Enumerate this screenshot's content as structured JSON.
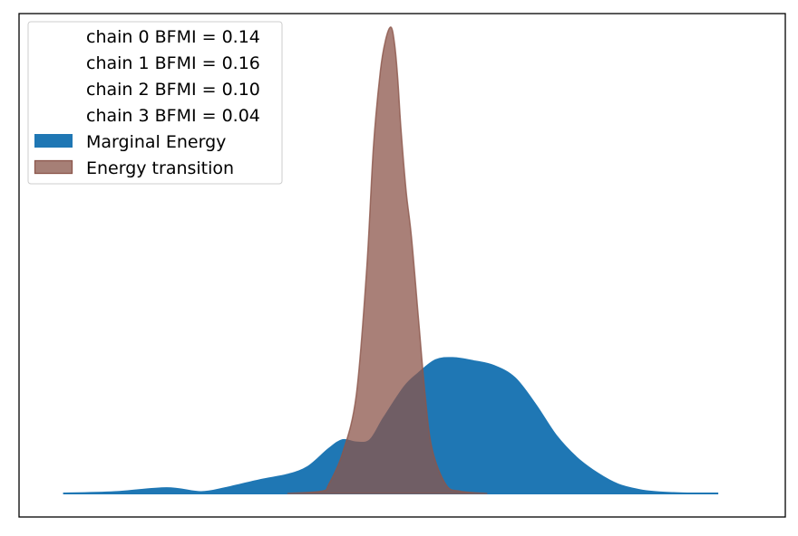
{
  "chart_data": {
    "type": "area",
    "title": "",
    "xlabel": "",
    "ylabel": "",
    "grid": false,
    "axis_ticks": false,
    "xlim": [
      -1.0,
      1.0
    ],
    "ylim": [
      0,
      1.06
    ],
    "legend_position": "upper left",
    "legend": [
      {
        "label": "chain  0 BFMI = 0.14",
        "kind": "text"
      },
      {
        "label": "chain  1 BFMI = 0.16",
        "kind": "text"
      },
      {
        "label": "chain  2 BFMI = 0.10",
        "kind": "text"
      },
      {
        "label": "chain  3 BFMI = 0.04",
        "kind": "text"
      },
      {
        "label": "Marginal Energy",
        "kind": "patch",
        "color": "#1f77b4"
      },
      {
        "label": "Energy transition",
        "kind": "patch",
        "color": "#a67f76",
        "edge": "#8c564b"
      }
    ],
    "series": [
      {
        "name": "Marginal Energy",
        "color": "#1f77b4",
        "opacity": 1.0,
        "x": [
          -0.95,
          -0.8,
          -0.65,
          -0.55,
          -0.48,
          -0.38,
          -0.3,
          -0.24,
          -0.18,
          -0.14,
          -0.1,
          -0.06,
          -0.02,
          0.04,
          0.08,
          0.13,
          0.18,
          0.24,
          0.3,
          0.36,
          0.42,
          0.48,
          0.54,
          0.6,
          0.66,
          0.72,
          0.77,
          0.82,
          0.86,
          0.9,
          0.95
        ],
        "y": [
          0.0,
          0.003,
          0.012,
          0.003,
          0.012,
          0.03,
          0.042,
          0.06,
          0.1,
          0.12,
          0.115,
          0.12,
          0.17,
          0.24,
          0.27,
          0.3,
          0.305,
          0.298,
          0.287,
          0.26,
          0.2,
          0.13,
          0.08,
          0.045,
          0.02,
          0.008,
          0.003,
          0.001,
          0.0,
          0.0,
          0.0
        ]
      },
      {
        "name": "Energy transition",
        "color": "#8c564b",
        "opacity": 0.75,
        "x": [
          -0.3,
          -0.2,
          -0.18,
          -0.14,
          -0.1,
          -0.07,
          -0.05,
          -0.03,
          -0.015,
          0.0,
          0.01,
          0.02,
          0.03,
          0.045,
          0.06,
          0.08,
          0.1,
          0.12,
          0.16,
          0.2,
          0.28
        ],
        "y": [
          0.0,
          0.005,
          0.02,
          0.09,
          0.22,
          0.5,
          0.78,
          0.95,
          1.02,
          1.05,
          1.02,
          0.94,
          0.82,
          0.68,
          0.58,
          0.4,
          0.22,
          0.1,
          0.02,
          0.005,
          0.0
        ]
      }
    ]
  }
}
